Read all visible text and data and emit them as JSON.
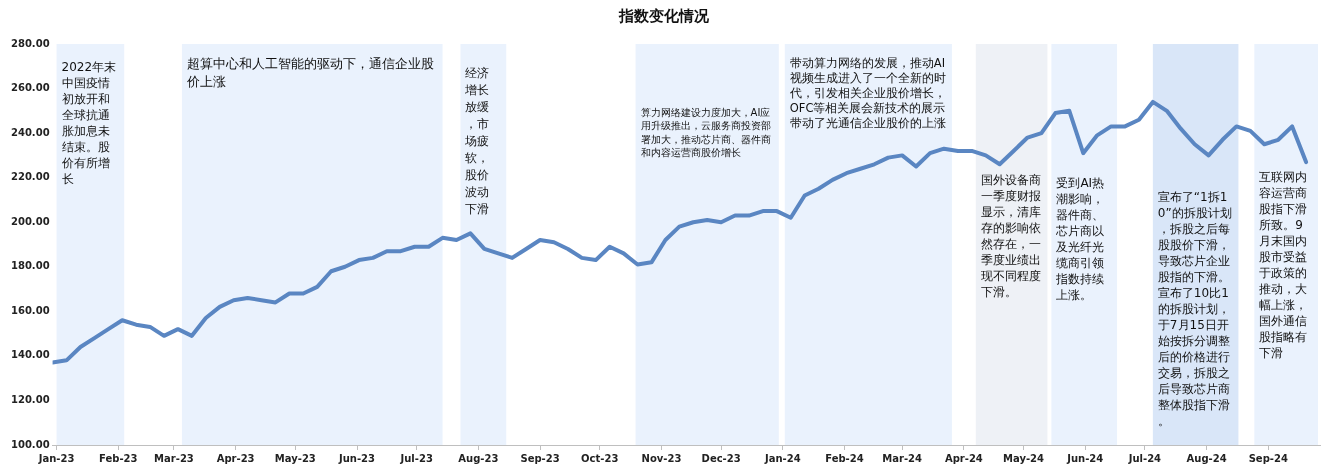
{
  "chart_data": {
    "type": "line",
    "title": "指数变化情况",
    "x": [
      "2022-12-30",
      "2023-01-06",
      "2023-01-13",
      "2023-01-20",
      "2023-01-27",
      "2023-02-03",
      "2023-02-10",
      "2023-02-17",
      "2023-02-24",
      "2023-03-03",
      "2023-03-10",
      "2023-03-17",
      "2023-03-24",
      "2023-03-31",
      "2023-04-07",
      "2023-04-14",
      "2023-04-21",
      "2023-04-28",
      "2023-05-05",
      "2023-05-12",
      "2023-05-19",
      "2023-05-26",
      "2023-06-02",
      "2023-06-09",
      "2023-06-16",
      "2023-06-23",
      "2023-06-30",
      "2023-07-07",
      "2023-07-14",
      "2023-07-21",
      "2023-07-28",
      "2023-08-04",
      "2023-08-11",
      "2023-08-18",
      "2023-08-25",
      "2023-09-01",
      "2023-09-08",
      "2023-09-15",
      "2023-09-22",
      "2023-09-29",
      "2023-10-06",
      "2023-10-13",
      "2023-10-20",
      "2023-10-27",
      "2023-11-03",
      "2023-11-10",
      "2023-11-17",
      "2023-11-24",
      "2023-12-01",
      "2023-12-08",
      "2023-12-15",
      "2023-12-22",
      "2023-12-29",
      "2024-01-05",
      "2024-01-12",
      "2024-01-19",
      "2024-01-26",
      "2024-02-02",
      "2024-02-09",
      "2024-02-16",
      "2024-02-23",
      "2024-03-01",
      "2024-03-08",
      "2024-03-15",
      "2024-03-22",
      "2024-03-29",
      "2024-04-05",
      "2024-04-12",
      "2024-04-19",
      "2024-04-26",
      "2024-05-03",
      "2024-05-10",
      "2024-05-17",
      "2024-05-24",
      "2024-05-31",
      "2024-06-07",
      "2024-06-14",
      "2024-06-21",
      "2024-06-28",
      "2024-07-05",
      "2024-07-12",
      "2024-07-19",
      "2024-07-26",
      "2024-08-02",
      "2024-08-09",
      "2024-08-16",
      "2024-08-23",
      "2024-08-30",
      "2024-09-06",
      "2024-09-13",
      "2024-09-20"
    ],
    "series": [
      {
        "color": "#5a86c2",
        "values": [
          137,
          138,
          144,
          148,
          152,
          156,
          154,
          153,
          149,
          152,
          149,
          157,
          162,
          165,
          166,
          165,
          164,
          168,
          168,
          171,
          178,
          180,
          183,
          184,
          187,
          187,
          189,
          189,
          193,
          192,
          195,
          188,
          186,
          184,
          188,
          192,
          191,
          188,
          184,
          183,
          189,
          186,
          181,
          182,
          192,
          198,
          200,
          201,
          200,
          203,
          203,
          205,
          205,
          202,
          212,
          215,
          219,
          222,
          224,
          226,
          229,
          230,
          225,
          231,
          233,
          232,
          232,
          230,
          226,
          232,
          238,
          240,
          249,
          250,
          231,
          239,
          243,
          243,
          246,
          254,
          250,
          242,
          235,
          230,
          237,
          243,
          241,
          235,
          237,
          243,
          227
        ]
      }
    ],
    "xlim": [
      "2022-12-30",
      "2024-09-27"
    ],
    "xticks": [
      {
        "value": "2023-01-01",
        "label": "Jan-23"
      },
      {
        "value": "2023-02-01",
        "label": "Feb-23"
      },
      {
        "value": "2023-03-01",
        "label": "Mar-23"
      },
      {
        "value": "2023-04-01",
        "label": "Apr-23"
      },
      {
        "value": "2023-05-01",
        "label": "May-23"
      },
      {
        "value": "2023-06-01",
        "label": "Jun-23"
      },
      {
        "value": "2023-07-01",
        "label": "Jul-23"
      },
      {
        "value": "2023-08-01",
        "label": "Aug-23"
      },
      {
        "value": "2023-09-01",
        "label": "Sep-23"
      },
      {
        "value": "2023-10-01",
        "label": "Oct-23"
      },
      {
        "value": "2023-11-01",
        "label": "Nov-23"
      },
      {
        "value": "2023-12-01",
        "label": "Dec-23"
      },
      {
        "value": "2024-01-01",
        "label": "Jan-24"
      },
      {
        "value": "2024-02-01",
        "label": "Feb-24"
      },
      {
        "value": "2024-03-01",
        "label": "Mar-24"
      },
      {
        "value": "2024-04-01",
        "label": "Apr-24"
      },
      {
        "value": "2024-05-01",
        "label": "May-24"
      },
      {
        "value": "2024-06-01",
        "label": "Jun-24"
      },
      {
        "value": "2024-07-01",
        "label": "Jul-24"
      },
      {
        "value": "2024-08-01",
        "label": "Aug-24"
      },
      {
        "value": "2024-09-01",
        "label": "Sep-24"
      }
    ],
    "ylim": [
      100,
      280
    ],
    "yticks": [
      {
        "value": 100,
        "label": "100.00"
      },
      {
        "value": 120,
        "label": "120.00"
      },
      {
        "value": 140,
        "label": "140.00"
      },
      {
        "value": 160,
        "label": "160.00"
      },
      {
        "value": 180,
        "label": "180.00"
      },
      {
        "value": 200,
        "label": "200.00"
      },
      {
        "value": 220,
        "label": "220.00"
      },
      {
        "value": 240,
        "label": "240.00"
      },
      {
        "value": 260,
        "label": "260.00"
      },
      {
        "value": 280,
        "label": "280.00"
      }
    ],
    "bands": [
      {
        "axis": "x",
        "from": "2023-01-01",
        "to": "2023-02-04",
        "color": "#eaf2fd",
        "label": "2022年末中国疫情初放开和全球抗通胀加息未结束。股价有所增长"
      },
      {
        "axis": "x",
        "from": "2023-03-05",
        "to": "2023-07-14",
        "color": "#eaf2fd",
        "label": "超算中心和人工智能的驱动下，通信企业股价上涨"
      },
      {
        "axis": "x",
        "from": "2023-07-23",
        "to": "2023-08-15",
        "color": "#eaf2fd",
        "label": "经济增长放缓，市场疲软，股价波动下滑"
      },
      {
        "axis": "x",
        "from": "2023-10-19",
        "to": "2023-12-30",
        "color": "#eaf2fd",
        "label": "算力网络建设力度加大，AI应用升级推出，云服务商投资部署加大，推动芯片商、器件商和内容运营商股价增长"
      },
      {
        "axis": "x",
        "from": "2024-01-02",
        "to": "2024-03-26",
        "color": "#eaf2fd",
        "label": "带动算力网络的发展，推动AI视频生成进入了一个全新的时代，引发相关企业股价增长，OFC等相关展会新技术的展示带动了光通信企业股价的上涨"
      },
      {
        "axis": "x",
        "from": "2024-04-07",
        "to": "2024-05-13",
        "color": "#eef1f6",
        "label": "国外设备商一季度财报显示，清库存的影响依然存在，一季度业绩出现不同程度下滑。"
      },
      {
        "axis": "x",
        "from": "2024-05-15",
        "to": "2024-06-17",
        "color": "#eaf2fd",
        "label": "受到AI热潮影响，器件商、芯片商以及光纤光缆商引领指数持续上涨。"
      },
      {
        "axis": "x",
        "from": "2024-07-05",
        "to": "2024-08-17",
        "color": "#d9e6f8",
        "label": "宣布了“1拆10”的拆股计划，拆股之后每股股价下滑，导致芯片企业股指的下滑。宣布了10比1的拆股计划，于7月15日开始按拆分调整后的价格进行交易，拆股之后导致芯片商整体股指下滑。"
      },
      {
        "axis": "x",
        "from": "2024-08-25",
        "to": "2024-09-26",
        "color": "#eaf2fd",
        "label": "互联网内容运营商股指下滑所致。9月末国内股市受益于政策的推动，大幅上涨，国外通信股指略有下滑"
      }
    ]
  }
}
